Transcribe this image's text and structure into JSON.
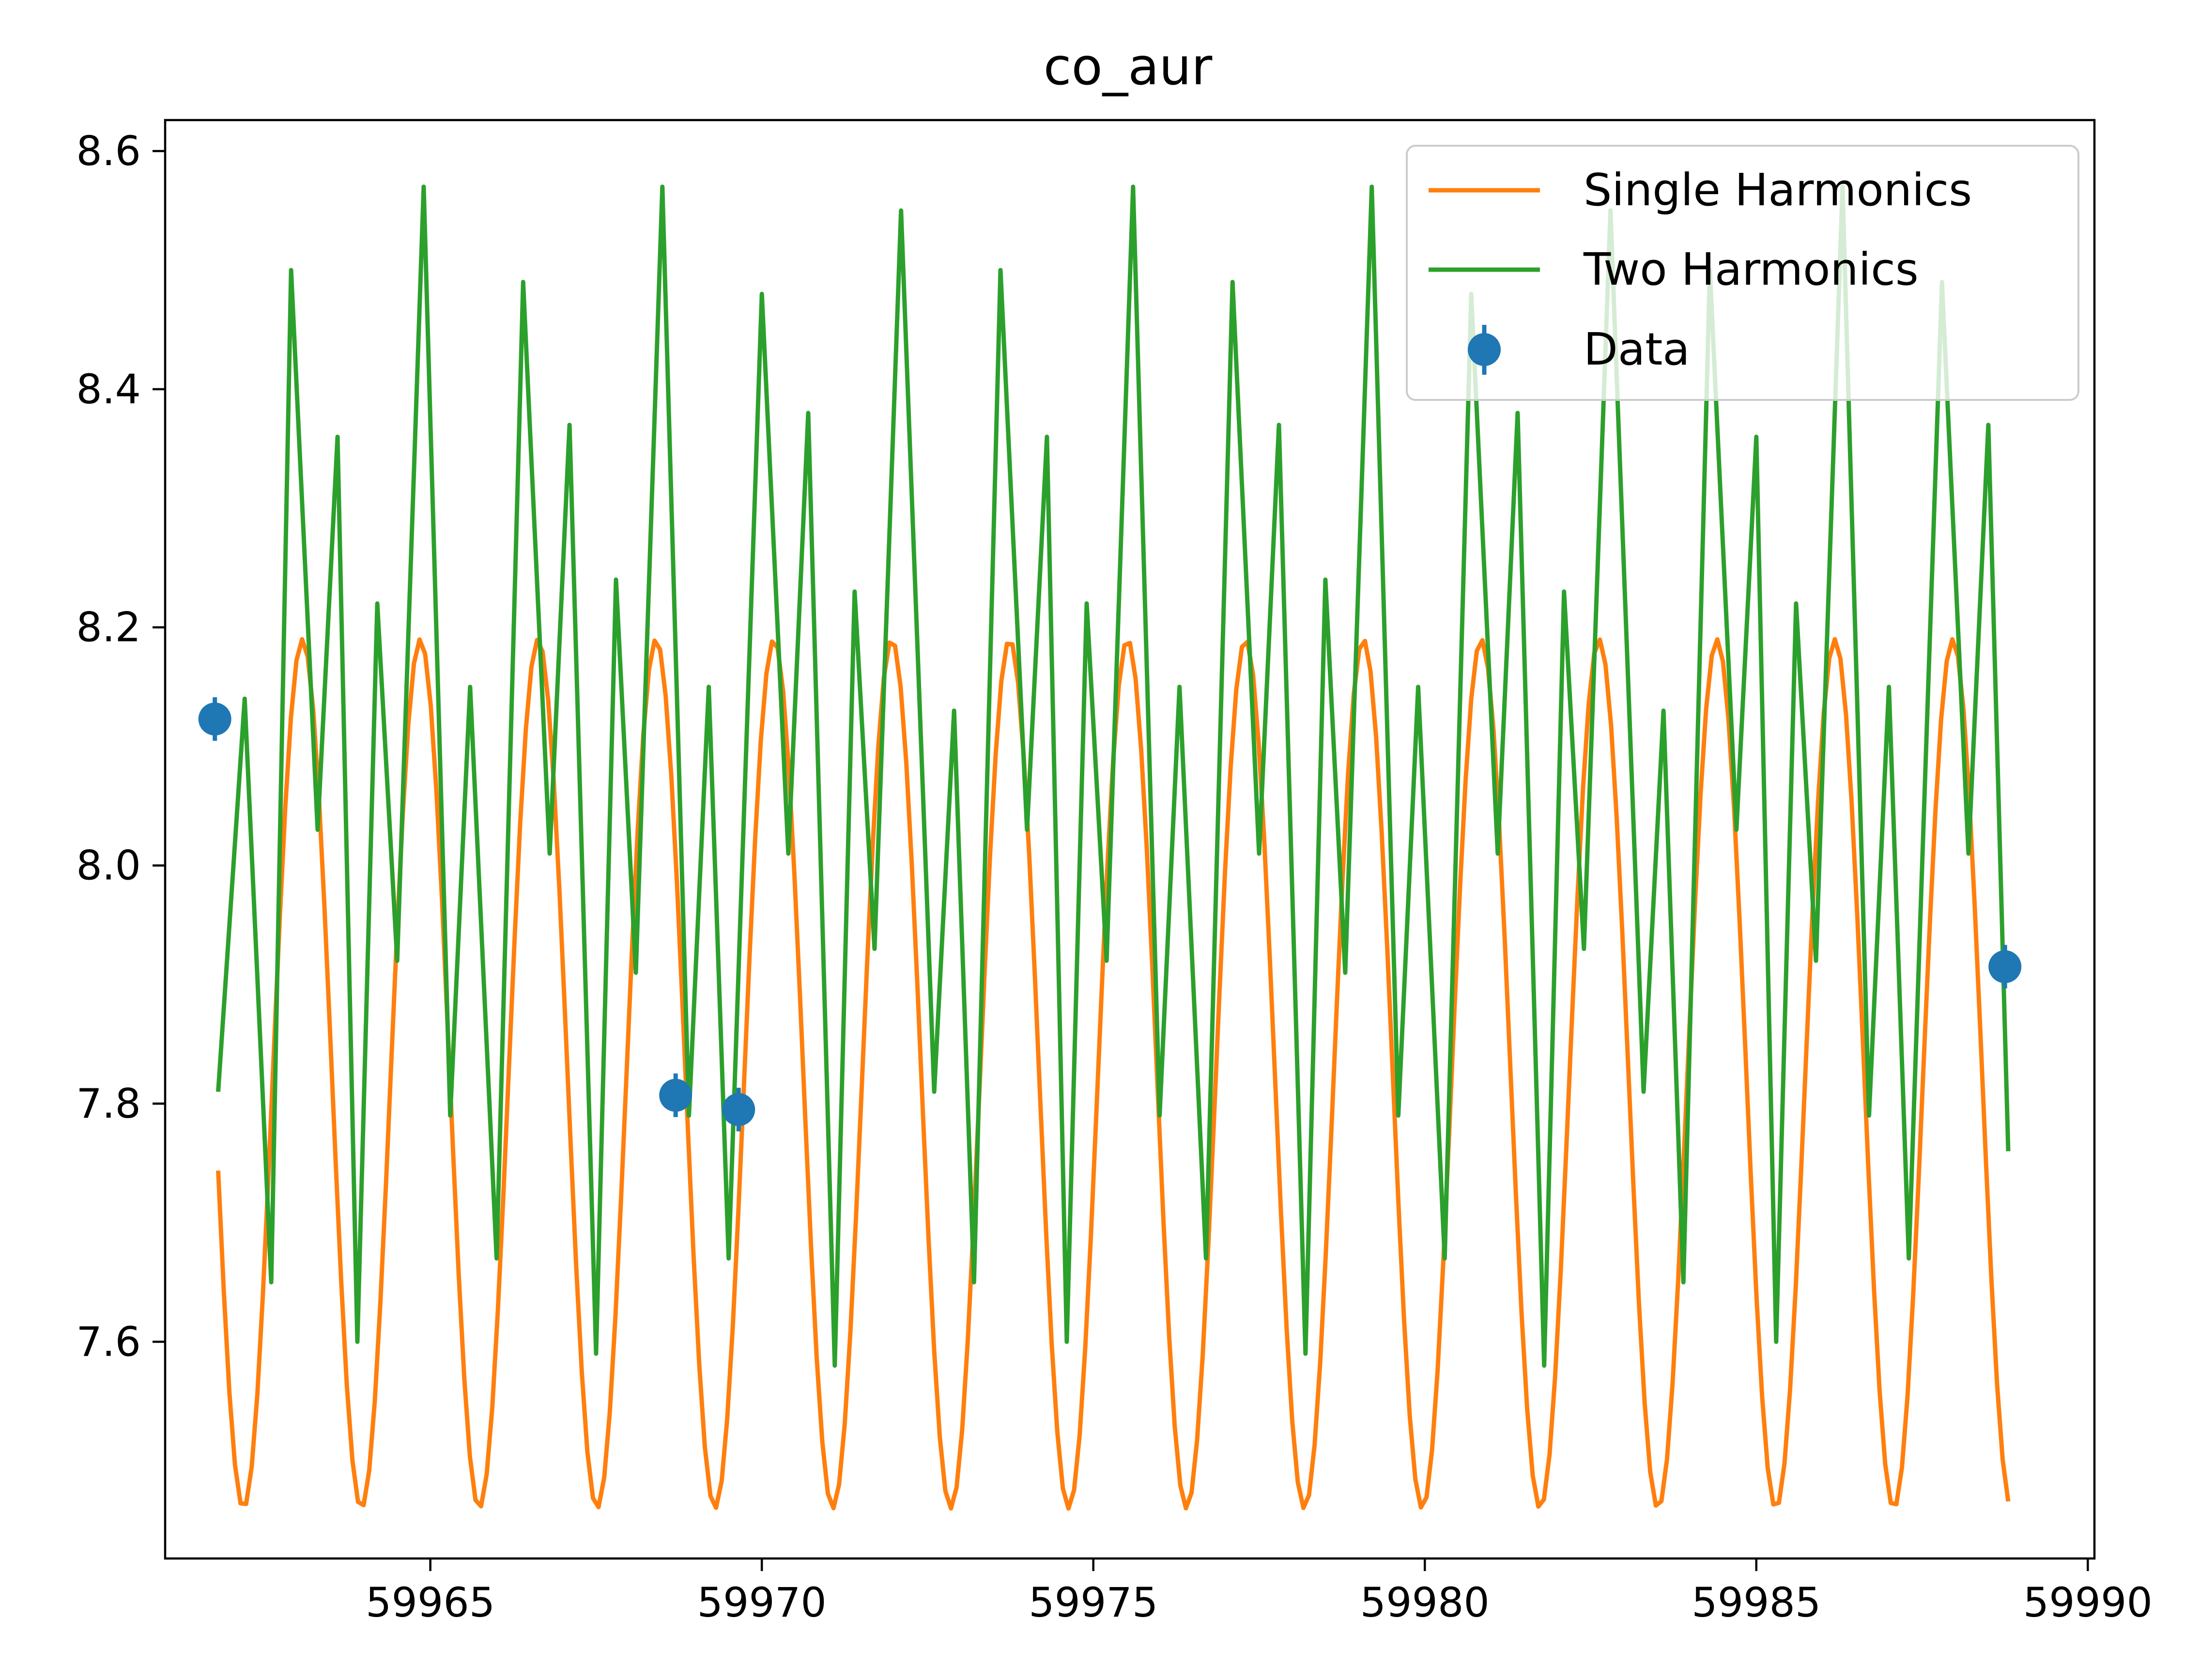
{
  "chart_data": {
    "type": "line",
    "title": "co_aur",
    "xlabel": "",
    "ylabel": "",
    "xlim": [
      59961.0,
      59990.1
    ],
    "ylim": [
      7.418,
      8.626
    ],
    "x_ticks": [
      59965,
      59970,
      59975,
      59980,
      59985,
      59990
    ],
    "y_ticks": [
      7.6,
      7.8,
      8.0,
      8.2,
      8.4,
      8.6
    ],
    "y_tick_decimals": 1,
    "grid": false,
    "legend_position": "upper right",
    "series": [
      {
        "name": "Single Harmonics",
        "kind": "line",
        "color": "#ff7f0e",
        "model": {
          "x_start": 59961.8,
          "x_end": 59988.8,
          "mean": 7.825,
          "amplitude": 0.365,
          "period": 1.778,
          "phase_x": 59963.07
        }
      },
      {
        "name": "Two Harmonics",
        "kind": "line",
        "color": "#2ca02c",
        "points": [
          [
            59961.8,
            7.81
          ],
          [
            59962.2,
            8.14
          ],
          [
            59962.6,
            7.65
          ],
          [
            59962.9,
            8.5
          ],
          [
            59963.3,
            8.03
          ],
          [
            59963.6,
            8.36
          ],
          [
            59963.9,
            7.6
          ],
          [
            59964.2,
            8.22
          ],
          [
            59964.5,
            7.92
          ],
          [
            59964.9,
            8.57
          ],
          [
            59965.3,
            7.79
          ],
          [
            59965.6,
            8.15
          ],
          [
            59966.0,
            7.67
          ],
          [
            59966.4,
            8.49
          ],
          [
            59966.8,
            8.01
          ],
          [
            59967.1,
            8.37
          ],
          [
            59967.5,
            7.59
          ],
          [
            59967.8,
            8.24
          ],
          [
            59968.1,
            7.91
          ],
          [
            59968.5,
            8.57
          ],
          [
            59968.9,
            7.79
          ],
          [
            59969.2,
            8.15
          ],
          [
            59969.5,
            7.67
          ],
          [
            59970.0,
            8.48
          ],
          [
            59970.4,
            8.01
          ],
          [
            59970.7,
            8.38
          ],
          [
            59971.1,
            7.58
          ],
          [
            59971.4,
            8.23
          ],
          [
            59971.7,
            7.93
          ],
          [
            59972.1,
            8.55
          ],
          [
            59972.6,
            7.81
          ],
          [
            59972.9,
            8.13
          ],
          [
            59973.2,
            7.65
          ],
          [
            59973.6,
            8.5
          ],
          [
            59974.0,
            8.03
          ],
          [
            59974.3,
            8.36
          ],
          [
            59974.6,
            7.6
          ],
          [
            59974.9,
            8.22
          ],
          [
            59975.2,
            7.92
          ],
          [
            59975.6,
            8.57
          ],
          [
            59976.0,
            7.79
          ],
          [
            59976.3,
            8.15
          ],
          [
            59976.7,
            7.67
          ],
          [
            59977.1,
            8.49
          ],
          [
            59977.5,
            8.01
          ],
          [
            59977.8,
            8.37
          ],
          [
            59978.2,
            7.59
          ],
          [
            59978.5,
            8.24
          ],
          [
            59978.8,
            7.91
          ],
          [
            59979.2,
            8.57
          ],
          [
            59979.6,
            7.79
          ],
          [
            59979.9,
            8.15
          ],
          [
            59980.3,
            7.67
          ],
          [
            59980.7,
            8.48
          ],
          [
            59981.1,
            8.01
          ],
          [
            59981.4,
            8.38
          ],
          [
            59981.8,
            7.58
          ],
          [
            59982.1,
            8.23
          ],
          [
            59982.4,
            7.93
          ],
          [
            59982.8,
            8.55
          ],
          [
            59983.3,
            7.81
          ],
          [
            59983.6,
            8.13
          ],
          [
            59983.9,
            7.65
          ],
          [
            59984.3,
            8.5
          ],
          [
            59984.7,
            8.03
          ],
          [
            59985.0,
            8.36
          ],
          [
            59985.3,
            7.6
          ],
          [
            59985.6,
            8.22
          ],
          [
            59985.9,
            7.92
          ],
          [
            59986.3,
            8.57
          ],
          [
            59986.7,
            7.79
          ],
          [
            59987.0,
            8.15
          ],
          [
            59987.3,
            7.67
          ],
          [
            59987.8,
            8.49
          ],
          [
            59988.2,
            8.01
          ],
          [
            59988.5,
            8.37
          ],
          [
            59988.8,
            7.76
          ]
        ]
      },
      {
        "name": "Data",
        "kind": "scatter",
        "color": "#1f77b4",
        "points": [
          [
            59961.75,
            8.123
          ],
          [
            59968.7,
            7.807
          ],
          [
            59969.65,
            7.795
          ],
          [
            59988.75,
            7.915
          ]
        ]
      }
    ]
  }
}
